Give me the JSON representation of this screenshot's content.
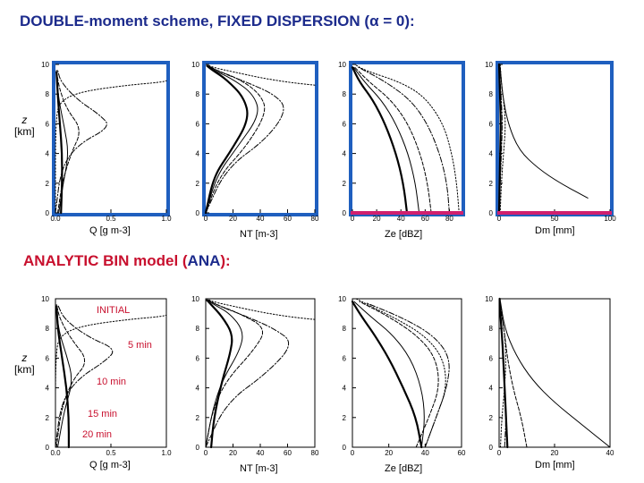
{
  "header": {
    "title_top": "DOUBLE-moment scheme, FIXED DISPERSION (α = 0):",
    "title_bottom_prefix": "ANALYTIC BIN model (",
    "title_bottom_ana": "ANA",
    "title_bottom_suffix": "):"
  },
  "labels": {
    "z_symbol": "z",
    "z_unit": "[km]",
    "x_labels": [
      "Q [g m-3]",
      "NT [m-3]",
      "Ze [dBZ]",
      "Dm [mm]"
    ]
  },
  "annotations": [
    "INITIAL",
    "5 min",
    "10 min",
    "15 min",
    "20 min"
  ],
  "colors": {
    "title_blue": "#1c2b8c",
    "title_red": "#c8102e",
    "panel_border_blue": "#1f5fbf",
    "highlight_magenta": "#d0206e",
    "annotation_red": "#c8102e"
  },
  "chart_data": [
    {
      "type": "line",
      "row": "top",
      "col": 0,
      "xlim": [
        0,
        1
      ],
      "ylim": [
        0,
        10
      ],
      "xticks": [
        "0.0",
        "0.5",
        "1.0"
      ],
      "yticks": [
        "0",
        "2",
        "4",
        "6",
        "8",
        "10"
      ],
      "series": [
        {
          "style": "dotted",
          "x": [
            0,
            0,
            0.05,
            0.25,
            0.65,
            0.95,
            1.0
          ],
          "y": [
            0,
            6.5,
            7.6,
            8.2,
            8.6,
            8.8,
            8.9
          ]
        },
        {
          "style": "dashdot",
          "x": [
            0,
            0.05,
            0.2,
            0.5,
            0.4,
            0.2,
            0.05,
            0.02
          ],
          "y": [
            0,
            3,
            4.6,
            5.8,
            6.6,
            7.6,
            8.8,
            9.6
          ]
        },
        {
          "style": "dashed",
          "x": [
            0.02,
            0.06,
            0.14,
            0.24,
            0.1,
            0.03,
            0.01
          ],
          "y": [
            0,
            2,
            4,
            5.6,
            7,
            8.5,
            9.6
          ]
        },
        {
          "style": "thin",
          "x": [
            0.03,
            0.07,
            0.12,
            0.08,
            0.03,
            0.01
          ],
          "y": [
            0,
            2,
            4,
            5.8,
            7.6,
            9.2
          ]
        },
        {
          "style": "thick",
          "x": [
            0.05,
            0.06,
            0.06,
            0.04,
            0.02,
            0.01
          ],
          "y": [
            0,
            2,
            4,
            6,
            8,
            9.5
          ]
        }
      ]
    },
    {
      "type": "line",
      "row": "top",
      "col": 1,
      "xlim": [
        0,
        80
      ],
      "ylim": [
        0,
        10
      ],
      "xticks": [
        "0",
        "20",
        "40",
        "60",
        "80"
      ],
      "yticks": [
        "0",
        "2",
        "4",
        "6",
        "8",
        "10"
      ],
      "series": [
        {
          "style": "dotted",
          "x": [
            80,
            60,
            40,
            20,
            5,
            1
          ],
          "y": [
            8.6,
            8.8,
            9.1,
            9.5,
            9.8,
            10
          ]
        },
        {
          "style": "dashdot",
          "x": [
            0,
            15,
            45,
            60,
            50,
            30,
            10,
            2
          ],
          "y": [
            0,
            3,
            5,
            7,
            8,
            8.8,
            9.5,
            9.9
          ]
        },
        {
          "style": "dashed",
          "x": [
            0,
            10,
            30,
            45,
            40,
            25,
            8,
            2
          ],
          "y": [
            0,
            2.5,
            4.5,
            6.8,
            8,
            9,
            9.6,
            9.9
          ]
        },
        {
          "style": "thin",
          "x": [
            0,
            8,
            22,
            40,
            35,
            20,
            6,
            2
          ],
          "y": [
            0,
            2.5,
            4.3,
            6.6,
            8,
            9,
            9.6,
            9.9
          ]
        },
        {
          "style": "thick",
          "x": [
            0,
            6,
            18,
            32,
            28,
            15,
            5,
            1
          ],
          "y": [
            0,
            2.5,
            4.1,
            6.3,
            7.8,
            9,
            9.6,
            9.9
          ]
        }
      ]
    },
    {
      "type": "line",
      "row": "top",
      "col": 2,
      "xlim": [
        0,
        90
      ],
      "ylim": [
        0,
        10
      ],
      "xticks": [
        "0",
        "20",
        "40",
        "60",
        "80"
      ],
      "yticks": [
        "0",
        "2",
        "4",
        "6",
        "8",
        "10"
      ],
      "series": [
        {
          "style": "dotted",
          "x": [
            88,
            86,
            82,
            75,
            60,
            40,
            10,
            2
          ],
          "y": [
            0,
            2,
            4,
            6,
            7.8,
            8.8,
            9.6,
            10
          ]
        },
        {
          "style": "dashdot",
          "x": [
            80,
            78,
            72,
            62,
            48,
            28,
            5
          ],
          "y": [
            0,
            2,
            4,
            6,
            7.6,
            8.8,
            9.8
          ]
        },
        {
          "style": "dashed",
          "x": [
            65,
            62,
            56,
            46,
            32,
            14,
            2
          ],
          "y": [
            0,
            2,
            4,
            6,
            7.6,
            8.8,
            9.8
          ]
        },
        {
          "style": "thin",
          "x": [
            55,
            52,
            46,
            36,
            24,
            10,
            1
          ],
          "y": [
            0,
            2,
            4,
            6,
            7.6,
            8.8,
            9.8
          ]
        },
        {
          "style": "thick",
          "x": [
            45,
            42,
            36,
            27,
            17,
            6,
            0
          ],
          "y": [
            0,
            2,
            4,
            6,
            7.6,
            8.8,
            9.8
          ]
        }
      ]
    },
    {
      "type": "line",
      "row": "top",
      "col": 3,
      "xlim": [
        0,
        100
      ],
      "ylim": [
        0,
        10
      ],
      "xticks": [
        "0",
        "50",
        "100"
      ],
      "yticks": [
        "0",
        "2",
        "4",
        "6",
        "8",
        "10"
      ],
      "series": [
        {
          "style": "dotted",
          "x": [
            1,
            2,
            4,
            6,
            4,
            2,
            1
          ],
          "y": [
            0,
            2,
            4,
            6,
            7.6,
            8.8,
            10
          ]
        },
        {
          "style": "dashdot",
          "x": [
            0,
            1,
            2,
            3,
            2,
            1,
            0
          ],
          "y": [
            0,
            2,
            4,
            6,
            7.6,
            8.8,
            10
          ]
        },
        {
          "style": "thin",
          "x": [
            80,
            55,
            35,
            18,
            8,
            3,
            1
          ],
          "y": [
            1,
            2,
            3,
            4.2,
            6,
            8,
            9.8
          ]
        },
        {
          "style": "thick",
          "x": [
            0,
            0.5,
            1,
            1.5,
            1,
            0.5,
            0
          ],
          "y": [
            0,
            2,
            4,
            6,
            7.6,
            8.8,
            10
          ]
        }
      ]
    },
    {
      "type": "line",
      "row": "bottom",
      "col": 0,
      "xlim": [
        0,
        1
      ],
      "ylim": [
        0,
        10
      ],
      "xticks": [
        "0.0",
        "0.5",
        "1.0"
      ],
      "yticks": [
        "0",
        "2",
        "4",
        "6",
        "8",
        "10"
      ],
      "series": [
        {
          "style": "dotted",
          "x": [
            0,
            0,
            0.05,
            0.25,
            0.65,
            0.95,
            1.0
          ],
          "y": [
            0,
            6.5,
            7.6,
            8.2,
            8.6,
            8.8,
            8.9
          ]
        },
        {
          "style": "dashdot",
          "x": [
            0,
            0.05,
            0.2,
            0.45,
            0.55,
            0.3,
            0.08,
            0.02
          ],
          "y": [
            0,
            3,
            4.6,
            5.8,
            6.6,
            7.4,
            8.6,
            9.6
          ]
        },
        {
          "style": "dashed",
          "x": [
            0.01,
            0.05,
            0.15,
            0.3,
            0.15,
            0.04,
            0.01
          ],
          "y": [
            0,
            2.5,
            4.5,
            5.8,
            7.2,
            8.6,
            9.6
          ]
        },
        {
          "style": "thin",
          "x": [
            0.02,
            0.08,
            0.16,
            0.1,
            0.03,
            0.01
          ],
          "y": [
            0,
            2.5,
            4.5,
            6.2,
            7.8,
            9.4
          ]
        },
        {
          "style": "thick",
          "x": [
            0.12,
            0.12,
            0.1,
            0.06,
            0.02,
            0.01
          ],
          "y": [
            0,
            2,
            4,
            6,
            8,
            9.5
          ]
        }
      ]
    },
    {
      "type": "line",
      "row": "bottom",
      "col": 1,
      "xlim": [
        0,
        80
      ],
      "ylim": [
        0,
        10
      ],
      "xticks": [
        "0",
        "20",
        "40",
        "60",
        "80"
      ],
      "yticks": [
        "0",
        "2",
        "4",
        "6",
        "8",
        "10"
      ],
      "series": [
        {
          "style": "dotted",
          "x": [
            80,
            60,
            40,
            20,
            5,
            1
          ],
          "y": [
            8.6,
            8.8,
            9.1,
            9.5,
            9.8,
            10
          ]
        },
        {
          "style": "dashdot",
          "x": [
            0,
            15,
            45,
            65,
            50,
            30,
            10,
            2
          ],
          "y": [
            0,
            3,
            5,
            7,
            8,
            8.8,
            9.5,
            9.9
          ]
        },
        {
          "style": "dashed",
          "x": [
            0,
            5,
            15,
            35,
            45,
            25,
            8,
            2
          ],
          "y": [
            0,
            2.5,
            4.5,
            6.5,
            8,
            9,
            9.6,
            9.9
          ]
        },
        {
          "style": "thin",
          "x": [
            0,
            5,
            12,
            25,
            28,
            18,
            6,
            2
          ],
          "y": [
            0,
            2.5,
            4.5,
            6.5,
            7.8,
            9,
            9.6,
            9.9
          ]
        },
        {
          "style": "thick",
          "x": [
            4,
            6,
            12,
            18,
            20,
            12,
            4,
            1
          ],
          "y": [
            0,
            2,
            4.5,
            6.3,
            7.6,
            8.8,
            9.6,
            9.9
          ]
        }
      ]
    },
    {
      "type": "line",
      "row": "bottom",
      "col": 2,
      "xlim": [
        0,
        60
      ],
      "ylim": [
        0,
        10
      ],
      "xticks": [
        "0",
        "20",
        "40",
        "60"
      ],
      "yticks": [
        "0",
        "2",
        "4",
        "6",
        "8",
        "10"
      ],
      "series": [
        {
          "style": "dotted",
          "x": [
            40,
            46,
            52,
            50,
            40,
            25,
            10,
            2
          ],
          "y": [
            0,
            2,
            4,
            6,
            7.5,
            8.6,
            9.5,
            10
          ]
        },
        {
          "style": "dashdot",
          "x": [
            40,
            46,
            52,
            54,
            45,
            28,
            8
          ],
          "y": [
            0,
            2,
            4,
            6,
            7.5,
            8.7,
            9.7
          ]
        },
        {
          "style": "dashed",
          "x": [
            35,
            42,
            48,
            46,
            36,
            20,
            4
          ],
          "y": [
            0,
            2,
            4,
            6,
            7.5,
            8.8,
            9.8
          ]
        },
        {
          "style": "thin",
          "x": [
            38,
            40,
            38,
            32,
            22,
            10,
            1
          ],
          "y": [
            0,
            2,
            4,
            6,
            7.6,
            8.8,
            9.8
          ]
        },
        {
          "style": "thick",
          "x": [
            38,
            35,
            28,
            20,
            12,
            5,
            0
          ],
          "y": [
            0,
            2,
            4,
            6,
            7.6,
            8.8,
            9.8
          ]
        }
      ]
    },
    {
      "type": "line",
      "row": "bottom",
      "col": 3,
      "xlim": [
        0,
        40
      ],
      "ylim": [
        0,
        10
      ],
      "xticks": [
        "0",
        "20",
        "40"
      ],
      "yticks": [
        "0",
        "2",
        "4",
        "6",
        "8",
        "10"
      ],
      "series": [
        {
          "style": "dotted",
          "x": [
            0.5,
            1,
            2,
            2.5,
            2,
            1,
            0.3
          ],
          "y": [
            0,
            2,
            4,
            6,
            7.6,
            8.8,
            10
          ]
        },
        {
          "style": "dashdot",
          "x": [
            2,
            2.5,
            2,
            1.5,
            1,
            0.5,
            0.2
          ],
          "y": [
            0,
            2,
            4,
            6,
            7.6,
            8.8,
            10
          ]
        },
        {
          "style": "thin",
          "x": [
            40,
            30,
            20,
            12,
            6,
            2,
            0.5
          ],
          "y": [
            0,
            1.5,
            3,
            4.5,
            6.2,
            8,
            9.8
          ]
        },
        {
          "style": "dashed",
          "x": [
            10,
            8,
            5,
            3,
            2,
            1,
            0.3
          ],
          "y": [
            0,
            2,
            4,
            6,
            7.6,
            8.8,
            10
          ]
        },
        {
          "style": "thick",
          "x": [
            3,
            2.5,
            2,
            1.5,
            1,
            0.5,
            0.2
          ],
          "y": [
            0,
            2,
            4,
            6,
            7.6,
            8.8,
            10
          ]
        }
      ]
    }
  ]
}
